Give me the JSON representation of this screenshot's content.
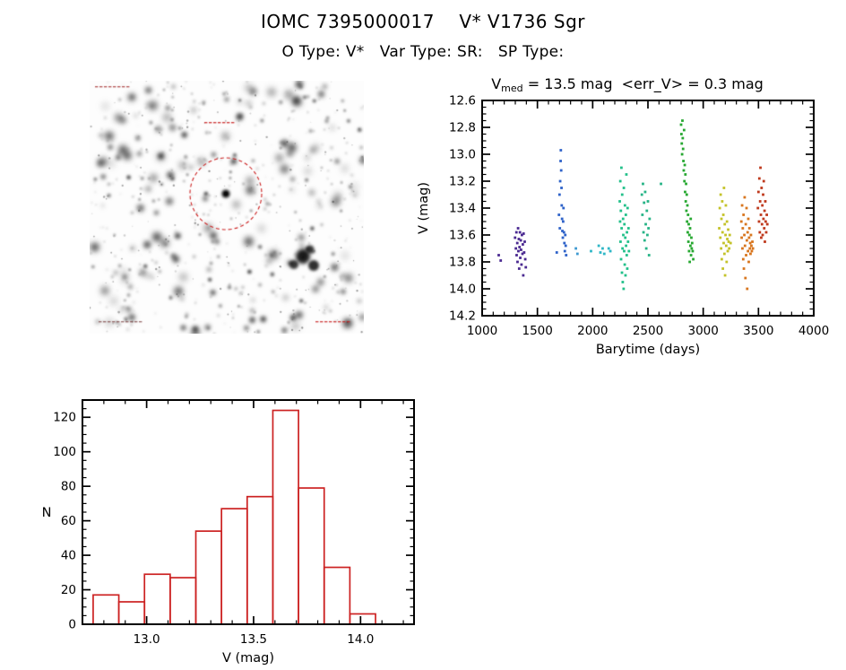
{
  "header": {
    "title": "IOMC 7395000017    V* V1736 Sgr",
    "subtitle": "O Type: V*   Var Type: SR:   SP Type:"
  },
  "lightcurve_title": {
    "prefix": "V",
    "sub": "med",
    "rest": " = 13.5 mag  <err_V> = 0.3 mag"
  },
  "finder": {
    "description": "grayscale star field finding chart",
    "marker_color": "#cc2222"
  },
  "chart_data": [
    {
      "type": "scatter",
      "title": "V_med = 13.5 mag <err_V> = 0.3 mag",
      "xlabel": "Barytime (days)",
      "ylabel": "V (mag)",
      "xlim": [
        1000,
        4000
      ],
      "ylim": [
        12.6,
        14.2
      ],
      "y_inverted_magnitude_axis": true,
      "xticks": [
        1000,
        1500,
        2000,
        2500,
        3000,
        3500,
        4000
      ],
      "yticks": [
        12.6,
        12.8,
        13.0,
        13.2,
        13.4,
        13.6,
        13.8,
        14.0,
        14.2
      ],
      "legend": "none",
      "grid": false,
      "series": [
        {
          "name": "epoch 1300d",
          "color": "#4b2a91",
          "points": [
            [
              1150,
              13.75
            ],
            [
              1168,
              13.79
            ],
            [
              1298,
              13.62
            ],
            [
              1305,
              13.7
            ],
            [
              1310,
              13.58
            ],
            [
              1312,
              13.75
            ],
            [
              1318,
              13.66
            ],
            [
              1320,
              13.8
            ],
            [
              1325,
              13.55
            ],
            [
              1328,
              13.72
            ],
            [
              1332,
              13.63
            ],
            [
              1335,
              13.85
            ],
            [
              1338,
              13.69
            ],
            [
              1342,
              13.58
            ],
            [
              1345,
              13.77
            ],
            [
              1350,
              13.64
            ],
            [
              1352,
              13.71
            ],
            [
              1356,
              13.82
            ],
            [
              1360,
              13.6
            ],
            [
              1365,
              13.74
            ],
            [
              1368,
              13.67
            ],
            [
              1372,
              13.9
            ],
            [
              1375,
              13.59
            ],
            [
              1380,
              13.73
            ],
            [
              1385,
              13.65
            ],
            [
              1390,
              13.78
            ],
            [
              1395,
              13.84
            ]
          ]
        },
        {
          "name": "epoch 1700d",
          "color": "#2f63c9",
          "points": [
            [
              1675,
              13.73
            ],
            [
              1695,
              13.45
            ],
            [
              1700,
              13.3
            ],
            [
              1703,
              13.55
            ],
            [
              1706,
              13.2
            ],
            [
              1710,
              13.05
            ],
            [
              1712,
              12.97
            ],
            [
              1715,
              13.12
            ],
            [
              1718,
              13.25
            ],
            [
              1720,
              13.38
            ],
            [
              1723,
              13.48
            ],
            [
              1726,
              13.57
            ],
            [
              1730,
              13.62
            ],
            [
              1733,
              13.5
            ],
            [
              1736,
              13.4
            ],
            [
              1740,
              13.58
            ],
            [
              1744,
              13.66
            ],
            [
              1748,
              13.72
            ],
            [
              1752,
              13.6
            ],
            [
              1756,
              13.68
            ],
            [
              1760,
              13.75
            ]
          ]
        },
        {
          "name": "epoch 1850d",
          "color": "#3f9ad1",
          "points": [
            [
              1848,
              13.7
            ],
            [
              1862,
              13.74
            ]
          ]
        },
        {
          "name": "epoch 2100d",
          "color": "#2fb7c7",
          "points": [
            [
              1985,
              13.72
            ],
            [
              2055,
              13.68
            ],
            [
              2070,
              13.73
            ],
            [
              2090,
              13.7
            ],
            [
              2105,
              13.74
            ],
            [
              2145,
              13.7
            ],
            [
              2160,
              13.72
            ]
          ]
        },
        {
          "name": "epoch 2280d",
          "color": "#23c08a",
          "points": [
            [
              2245,
              13.35
            ],
            [
              2248,
              13.5
            ],
            [
              2250,
              13.2
            ],
            [
              2252,
              13.65
            ],
            [
              2255,
              13.42
            ],
            [
              2257,
              13.78
            ],
            [
              2260,
              13.1
            ],
            [
              2262,
              13.55
            ],
            [
              2265,
              13.88
            ],
            [
              2267,
              13.3
            ],
            [
              2270,
              13.7
            ],
            [
              2272,
              13.95
            ],
            [
              2275,
              13.48
            ],
            [
              2277,
              13.6
            ],
            [
              2280,
              14.0
            ],
            [
              2282,
              13.25
            ],
            [
              2285,
              13.72
            ],
            [
              2287,
              13.52
            ],
            [
              2290,
              13.82
            ],
            [
              2292,
              13.38
            ],
            [
              2295,
              13.62
            ],
            [
              2297,
              13.9
            ],
            [
              2300,
              13.45
            ],
            [
              2302,
              13.68
            ],
            [
              2305,
              13.15
            ],
            [
              2308,
              13.75
            ],
            [
              2310,
              13.58
            ],
            [
              2313,
              13.85
            ],
            [
              2316,
              13.4
            ],
            [
              2320,
              13.65
            ],
            [
              2324,
              13.55
            ],
            [
              2328,
              13.72
            ]
          ]
        },
        {
          "name": "epoch 2470d",
          "color": "#27b487",
          "points": [
            [
              2445,
              13.3
            ],
            [
              2450,
              13.45
            ],
            [
              2455,
              13.22
            ],
            [
              2460,
              13.58
            ],
            [
              2465,
              13.36
            ],
            [
              2470,
              13.64
            ],
            [
              2475,
              13.28
            ],
            [
              2480,
              13.52
            ],
            [
              2485,
              13.7
            ],
            [
              2490,
              13.42
            ],
            [
              2495,
              13.6
            ],
            [
              2500,
              13.35
            ],
            [
              2505,
              13.55
            ],
            [
              2510,
              13.75
            ],
            [
              2515,
              13.48
            ],
            [
              2618,
              13.22
            ]
          ]
        },
        {
          "name": "epoch 2850d",
          "color": "#28a832",
          "points": [
            [
              2800,
              12.78
            ],
            [
              2803,
              12.85
            ],
            [
              2806,
              12.92
            ],
            [
              2809,
              13.0
            ],
            [
              2812,
              12.75
            ],
            [
              2815,
              12.88
            ],
            [
              2818,
              12.96
            ],
            [
              2821,
              13.05
            ],
            [
              2824,
              13.12
            ],
            [
              2827,
              12.82
            ],
            [
              2830,
              13.2
            ],
            [
              2833,
              13.08
            ],
            [
              2836,
              13.28
            ],
            [
              2839,
              13.15
            ],
            [
              2842,
              13.35
            ],
            [
              2845,
              13.22
            ],
            [
              2848,
              13.42
            ],
            [
              2851,
              13.3
            ],
            [
              2854,
              13.5
            ],
            [
              2857,
              13.38
            ],
            [
              2860,
              13.58
            ],
            [
              2863,
              13.45
            ],
            [
              2866,
              13.65
            ],
            [
              2869,
              13.52
            ],
            [
              2872,
              13.72
            ],
            [
              2875,
              13.6
            ],
            [
              2878,
              13.8
            ],
            [
              2881,
              13.55
            ],
            [
              2884,
              13.68
            ],
            [
              2887,
              13.48
            ],
            [
              2890,
              13.75
            ],
            [
              2893,
              13.62
            ],
            [
              2896,
              13.7
            ],
            [
              2900,
              13.66
            ],
            [
              2905,
              13.72
            ],
            [
              2910,
              13.78
            ]
          ]
        },
        {
          "name": "epoch 3200d",
          "color": "#c4c32a",
          "points": [
            [
              3145,
              13.55
            ],
            [
              3150,
              13.4
            ],
            [
              3155,
              13.62
            ],
            [
              3158,
              13.3
            ],
            [
              3162,
              13.7
            ],
            [
              3165,
              13.48
            ],
            [
              3168,
              13.78
            ],
            [
              3172,
              13.35
            ],
            [
              3175,
              13.58
            ],
            [
              3178,
              13.85
            ],
            [
              3182,
              13.45
            ],
            [
              3185,
              13.66
            ],
            [
              3188,
              13.25
            ],
            [
              3192,
              13.74
            ],
            [
              3195,
              13.52
            ],
            [
              3198,
              13.9
            ],
            [
              3202,
              13.6
            ],
            [
              3205,
              13.38
            ],
            [
              3208,
              13.68
            ],
            [
              3212,
              13.8
            ],
            [
              3215,
              13.5
            ],
            [
              3218,
              13.63
            ],
            [
              3222,
              13.72
            ],
            [
              3226,
              13.56
            ],
            [
              3230,
              13.65
            ],
            [
              3235,
              13.7
            ],
            [
              3240,
              13.6
            ],
            [
              3248,
              13.66
            ]
          ]
        },
        {
          "name": "epoch 3400d",
          "color": "#d8761f",
          "points": [
            [
              3345,
              13.5
            ],
            [
              3348,
              13.62
            ],
            [
              3352,
              13.38
            ],
            [
              3355,
              13.7
            ],
            [
              3358,
              13.55
            ],
            [
              3362,
              13.78
            ],
            [
              3365,
              13.45
            ],
            [
              3368,
              13.85
            ],
            [
              3372,
              13.6
            ],
            [
              3375,
              13.32
            ],
            [
              3378,
              13.68
            ],
            [
              3382,
              13.92
            ],
            [
              3385,
              13.52
            ],
            [
              3388,
              13.75
            ],
            [
              3392,
              13.4
            ],
            [
              3395,
              13.64
            ],
            [
              3398,
              14.0
            ],
            [
              3402,
              13.58
            ],
            [
              3405,
              13.72
            ],
            [
              3408,
              13.48
            ],
            [
              3412,
              13.8
            ],
            [
              3415,
              13.62
            ],
            [
              3418,
              13.55
            ],
            [
              3422,
              13.7
            ],
            [
              3425,
              13.66
            ],
            [
              3428,
              13.74
            ],
            [
              3432,
              13.6
            ],
            [
              3436,
              13.68
            ],
            [
              3440,
              13.72
            ],
            [
              3445,
              13.65
            ],
            [
              3450,
              13.7
            ]
          ]
        },
        {
          "name": "epoch 3550d",
          "color": "#bf3a1e",
          "points": [
            [
              3495,
              13.4
            ],
            [
              3500,
              13.28
            ],
            [
              3505,
              13.5
            ],
            [
              3508,
              13.18
            ],
            [
              3512,
              13.58
            ],
            [
              3515,
              13.35
            ],
            [
              3518,
              13.1
            ],
            [
              3522,
              13.45
            ],
            [
              3525,
              13.62
            ],
            [
              3528,
              13.25
            ],
            [
              3532,
              13.52
            ],
            [
              3535,
              13.38
            ],
            [
              3538,
              13.6
            ],
            [
              3542,
              13.3
            ],
            [
              3545,
              13.48
            ],
            [
              3548,
              13.2
            ],
            [
              3552,
              13.55
            ],
            [
              3555,
              13.42
            ],
            [
              3558,
              13.65
            ],
            [
              3562,
              13.35
            ],
            [
              3565,
              13.5
            ],
            [
              3570,
              13.58
            ],
            [
              3575,
              13.45
            ],
            [
              3580,
              13.52
            ]
          ]
        }
      ]
    },
    {
      "type": "bar",
      "subtype": "histogram",
      "title": "",
      "xlabel": "V (mag)",
      "ylabel": "N",
      "color": "#cc2222",
      "xlim": [
        12.7,
        14.25
      ],
      "ylim": [
        0,
        130
      ],
      "xticks": [
        13.0,
        13.5,
        14.0
      ],
      "yticks": [
        0,
        20,
        40,
        60,
        80,
        100,
        120
      ],
      "bin_edges": [
        12.75,
        12.87,
        12.99,
        13.11,
        13.23,
        13.35,
        13.47,
        13.59,
        13.71,
        13.83,
        13.95,
        14.07
      ],
      "values": [
        17,
        13,
        29,
        27,
        54,
        67,
        74,
        124,
        79,
        33,
        6
      ],
      "grid": false
    }
  ]
}
